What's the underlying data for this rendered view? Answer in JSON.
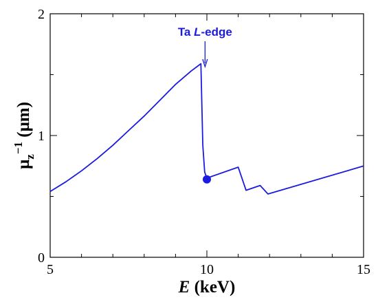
{
  "chart_data": {
    "type": "line",
    "title": "",
    "xlabel": {
      "italic": "E",
      "rest": " (keV)"
    },
    "ylabel": {
      "main": "μ",
      "sub": "z",
      "sup": "−1",
      "rest": " (μm)"
    },
    "xlim": [
      5,
      15
    ],
    "ylim": [
      0,
      2
    ],
    "xticks": [
      "5",
      "10",
      "15"
    ],
    "yticks": [
      "0",
      "1",
      "2"
    ],
    "grid": false,
    "legend": "none",
    "color": "#1a1ae0",
    "series": [
      {
        "x": [
          5.0,
          5.5,
          6.0,
          6.5,
          7.0,
          7.5,
          8.0,
          8.5,
          9.0,
          9.5,
          9.81,
          9.81,
          9.87,
          9.93,
          10.0,
          11.0,
          11.25,
          11.7,
          11.95,
          15.0
        ],
        "y": [
          0.54,
          0.62,
          0.71,
          0.81,
          0.92,
          1.04,
          1.16,
          1.29,
          1.42,
          1.53,
          1.59,
          1.59,
          0.92,
          0.7,
          0.65,
          0.74,
          0.55,
          0.59,
          0.52,
          0.75
        ]
      }
    ],
    "marker": {
      "x": 10.0,
      "y": 0.64
    },
    "annotation": {
      "label_plain": "Ta ",
      "label_italic": "L",
      "label_rest": "-edge",
      "x": 9.81
    }
  }
}
